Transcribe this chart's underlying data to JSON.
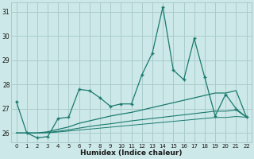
{
  "xlabel": "Humidex (Indice chaleur)",
  "bg_color": "#cce8e8",
  "grid_color": "#aacccc",
  "line_color": "#1a7a6e",
  "ylim": [
    25.6,
    31.4
  ],
  "xlim": [
    -0.5,
    22.5
  ],
  "yticks": [
    26,
    27,
    28,
    29,
    30,
    31
  ],
  "xticks": [
    0,
    1,
    2,
    3,
    4,
    5,
    6,
    7,
    8,
    9,
    10,
    11,
    12,
    13,
    14,
    15,
    16,
    17,
    18,
    19,
    20,
    21,
    22
  ],
  "x": [
    0,
    1,
    2,
    3,
    4,
    5,
    6,
    7,
    8,
    9,
    10,
    11,
    12,
    13,
    14,
    15,
    16,
    17,
    18,
    19,
    20,
    21,
    22
  ],
  "y_main": [
    27.3,
    26.0,
    25.8,
    25.85,
    26.6,
    26.65,
    27.8,
    27.75,
    27.45,
    27.1,
    27.2,
    27.2,
    28.4,
    29.3,
    31.2,
    28.6,
    28.2,
    29.9,
    28.3,
    26.7,
    27.6,
    27.0,
    26.65
  ],
  "y_line2": [
    26.0,
    26.0,
    26.0,
    26.05,
    26.15,
    26.25,
    26.4,
    26.5,
    26.6,
    26.7,
    26.78,
    26.85,
    26.95,
    27.05,
    27.15,
    27.25,
    27.35,
    27.45,
    27.55,
    27.65,
    27.65,
    27.75,
    26.65
  ],
  "y_line3": [
    26.0,
    26.0,
    26.0,
    26.02,
    26.07,
    26.13,
    26.2,
    26.27,
    26.33,
    26.38,
    26.44,
    26.5,
    26.55,
    26.6,
    26.65,
    26.7,
    26.75,
    26.8,
    26.85,
    26.9,
    26.9,
    26.95,
    26.65
  ],
  "y_line4": [
    26.0,
    26.0,
    26.0,
    26.01,
    26.04,
    26.08,
    26.12,
    26.16,
    26.2,
    26.24,
    26.28,
    26.32,
    26.36,
    26.4,
    26.44,
    26.48,
    26.52,
    26.56,
    26.6,
    26.64,
    26.64,
    26.68,
    26.65
  ]
}
